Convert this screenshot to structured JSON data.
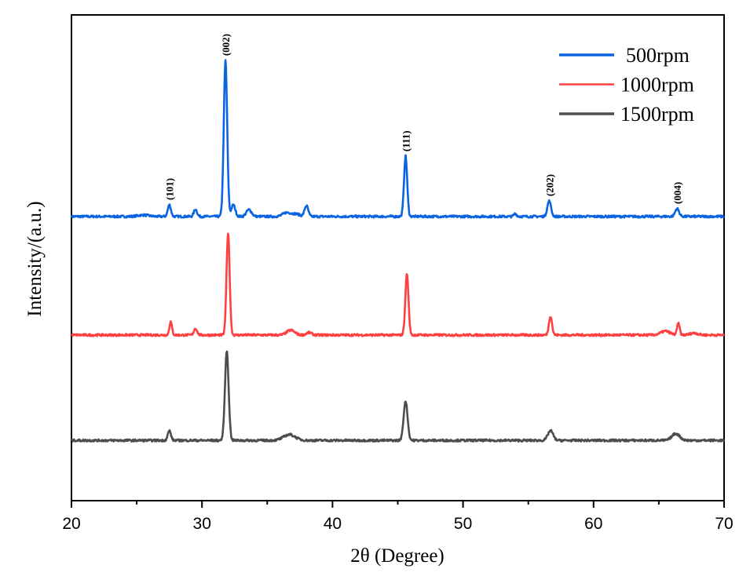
{
  "chart_data": {
    "type": "line",
    "title": "",
    "xlabel": "2θ (Degree)",
    "ylabel": "Intensity/(a.u.)",
    "xlim": [
      20,
      70
    ],
    "ylim": [
      0,
      100
    ],
    "xticks": [
      20,
      30,
      40,
      50,
      60,
      70
    ],
    "xtick_labels": [
      "20",
      "30",
      "40",
      "50",
      "60",
      "70"
    ],
    "minor_xticks": [
      25,
      35,
      45,
      55,
      65
    ],
    "grid": false,
    "legend_position": "top-right",
    "series": [
      {
        "name": "500rpm",
        "color": "#0a64e0",
        "baseline": 58.5,
        "peaks": [
          {
            "x": 25.5,
            "h": 0.3,
            "w": 0.4
          },
          {
            "x": 27.5,
            "h": 2.4,
            "w": 0.12
          },
          {
            "x": 29.5,
            "h": 1.5,
            "w": 0.12
          },
          {
            "x": 31.8,
            "h": 32.1,
            "w": 0.13
          },
          {
            "x": 32.4,
            "h": 2.4,
            "w": 0.15
          },
          {
            "x": 33.6,
            "h": 1.4,
            "w": 0.2
          },
          {
            "x": 36.5,
            "h": 0.8,
            "w": 0.3
          },
          {
            "x": 37.2,
            "h": 0.5,
            "w": 0.3
          },
          {
            "x": 38.0,
            "h": 2.2,
            "w": 0.14
          },
          {
            "x": 45.6,
            "h": 12.4,
            "w": 0.12
          },
          {
            "x": 54.0,
            "h": 0.6,
            "w": 0.1
          },
          {
            "x": 56.6,
            "h": 3.2,
            "w": 0.14
          },
          {
            "x": 66.4,
            "h": 1.6,
            "w": 0.15
          }
        ]
      },
      {
        "name": "1000rpm",
        "color": "#ff4040",
        "baseline": 34.1,
        "peaks": [
          {
            "x": 27.6,
            "h": 2.7,
            "w": 0.1
          },
          {
            "x": 29.5,
            "h": 1.4,
            "w": 0.12
          },
          {
            "x": 32.0,
            "h": 21.0,
            "w": 0.12
          },
          {
            "x": 36.8,
            "h": 1.0,
            "w": 0.3
          },
          {
            "x": 38.2,
            "h": 0.5,
            "w": 0.2
          },
          {
            "x": 45.7,
            "h": 12.6,
            "w": 0.12
          },
          {
            "x": 56.7,
            "h": 3.9,
            "w": 0.12
          },
          {
            "x": 65.5,
            "h": 0.8,
            "w": 0.35
          },
          {
            "x": 66.5,
            "h": 2.4,
            "w": 0.1
          },
          {
            "x": 67.7,
            "h": 0.4,
            "w": 0.3
          }
        ]
      },
      {
        "name": "1500rpm",
        "color": "#4d4d4d",
        "baseline": 12.4,
        "peaks": [
          {
            "x": 27.5,
            "h": 2.0,
            "w": 0.12
          },
          {
            "x": 31.9,
            "h": 18.4,
            "w": 0.14
          },
          {
            "x": 36.7,
            "h": 1.2,
            "w": 0.45
          },
          {
            "x": 45.6,
            "h": 8.1,
            "w": 0.15
          },
          {
            "x": 56.7,
            "h": 2.0,
            "w": 0.2
          },
          {
            "x": 66.3,
            "h": 1.4,
            "w": 0.3
          }
        ]
      }
    ],
    "annotations": [
      {
        "text": "(101)",
        "x": 27.5,
        "series": 0
      },
      {
        "text": "(002)",
        "x": 31.8,
        "series": 0
      },
      {
        "text": "(111)",
        "x": 45.6,
        "series": 0
      },
      {
        "text": "(202)",
        "x": 56.6,
        "series": 0
      },
      {
        "text": "(004)",
        "x": 66.4,
        "series": 0
      }
    ]
  }
}
